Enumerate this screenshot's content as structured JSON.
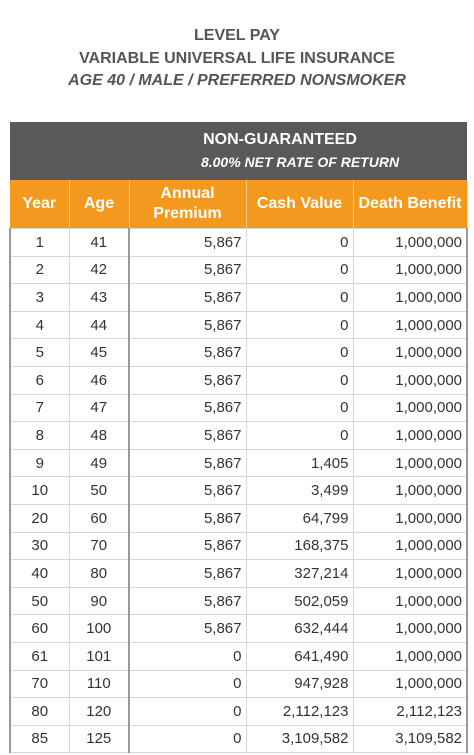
{
  "header": {
    "lines": [
      "LEVEL PAY",
      "VARIABLE UNIVERSAL LIFE INSURANCE",
      "AGE 40 / MALE / PREFERRED NONSMOKER"
    ]
  },
  "table": {
    "group_title": "NON-GUARANTEED",
    "group_subtitle": "8.00% NET RATE OF RETURN",
    "columns": [
      "Year",
      "Age",
      "Annual Premium",
      "Cash Value",
      "Death Benefit"
    ],
    "rows": [
      [
        "1",
        "41",
        "5,867",
        "0",
        "1,000,000"
      ],
      [
        "2",
        "42",
        "5,867",
        "0",
        "1,000,000"
      ],
      [
        "3",
        "43",
        "5,867",
        "0",
        "1,000,000"
      ],
      [
        "4",
        "44",
        "5,867",
        "0",
        "1,000,000"
      ],
      [
        "5",
        "45",
        "5,867",
        "0",
        "1,000,000"
      ],
      [
        "6",
        "46",
        "5,867",
        "0",
        "1,000,000"
      ],
      [
        "7",
        "47",
        "5,867",
        "0",
        "1,000,000"
      ],
      [
        "8",
        "48",
        "5,867",
        "0",
        "1,000,000"
      ],
      [
        "9",
        "49",
        "5,867",
        "1,405",
        "1,000,000"
      ],
      [
        "10",
        "50",
        "5,867",
        "3,499",
        "1,000,000"
      ],
      [
        "20",
        "60",
        "5,867",
        "64,799",
        "1,000,000"
      ],
      [
        "30",
        "70",
        "5,867",
        "168,375",
        "1,000,000"
      ],
      [
        "40",
        "80",
        "5,867",
        "327,214",
        "1,000,000"
      ],
      [
        "50",
        "90",
        "5,867",
        "502,059",
        "1,000,000"
      ],
      [
        "60",
        "100",
        "5,867",
        "632,444",
        "1,000,000"
      ],
      [
        "61",
        "101",
        "0",
        "641,490",
        "1,000,000"
      ],
      [
        "70",
        "110",
        "0",
        "947,928",
        "1,000,000"
      ],
      [
        "80",
        "120",
        "0",
        "2,112,123",
        "2,112,123"
      ],
      [
        "85",
        "125",
        "0",
        "3,109,582",
        "3,109,582"
      ]
    ]
  }
}
